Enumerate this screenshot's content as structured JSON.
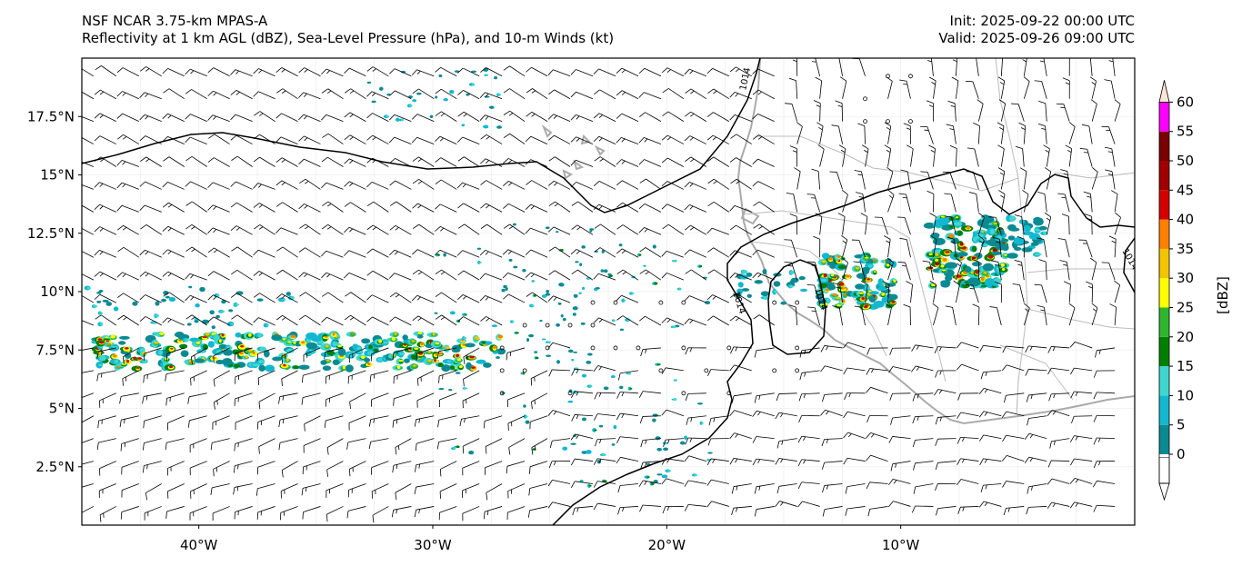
{
  "header": {
    "model": "NSF NCAR 3.75-km MPAS-A",
    "fields": "Reflectivity at 1 km AGL (dBZ), Sea-Level Pressure (hPa), and 10-m Winds (kt)",
    "init": "Init: 2025-09-22 00:00 UTC",
    "valid": "Valid: 2025-09-26 09:00 UTC"
  },
  "map": {
    "extent": {
      "lon": [
        -45,
        0
      ],
      "lat": [
        0,
        20
      ]
    },
    "lat_ticks": [
      {
        "value": 2.5,
        "label": "2.5°N"
      },
      {
        "value": 5,
        "label": "5°N"
      },
      {
        "value": 7.5,
        "label": "7.5°N"
      },
      {
        "value": 10,
        "label": "10°N"
      },
      {
        "value": 12.5,
        "label": "12.5°N"
      },
      {
        "value": 15,
        "label": "15°N"
      },
      {
        "value": 17.5,
        "label": "17.5°N"
      }
    ],
    "lon_ticks": [
      {
        "value": -40,
        "label": "40°W"
      },
      {
        "value": -30,
        "label": "30°W"
      },
      {
        "value": -20,
        "label": "20°W"
      },
      {
        "value": -10,
        "label": "10°W"
      }
    ],
    "isobar_labels": [
      "1014",
      "1014",
      "1014",
      "1014"
    ],
    "colors": {
      "coastline": "#aaaaaa",
      "border": "#bbbbbb",
      "isobar": "#000000",
      "barb": "#000000"
    }
  },
  "colorbar": {
    "unit_label": "[dBZ]",
    "ticks": [
      "0",
      "5",
      "10",
      "15",
      "20",
      "25",
      "30",
      "35",
      "40",
      "45",
      "50",
      "55",
      "60"
    ],
    "levels": [
      {
        "from": 0,
        "to": 5,
        "color": "#0a8a92"
      },
      {
        "from": 5,
        "to": 10,
        "color": "#12b8d0"
      },
      {
        "from": 10,
        "to": 15,
        "color": "#3ed7cf"
      },
      {
        "from": 15,
        "to": 20,
        "color": "#008000"
      },
      {
        "from": 20,
        "to": 25,
        "color": "#2fb62f"
      },
      {
        "from": 25,
        "to": 30,
        "color": "#ffff00"
      },
      {
        "from": 30,
        "to": 35,
        "color": "#f2c500"
      },
      {
        "from": 35,
        "to": 40,
        "color": "#ff8000"
      },
      {
        "from": 40,
        "to": 45,
        "color": "#d40000"
      },
      {
        "from": 45,
        "to": 50,
        "color": "#a00000"
      },
      {
        "from": 50,
        "to": 55,
        "color": "#7a0000"
      },
      {
        "from": 55,
        "to": 60,
        "color": "#ff00ff"
      }
    ],
    "below_color": "#ffffff",
    "above_color": "#ffe4d8"
  }
}
